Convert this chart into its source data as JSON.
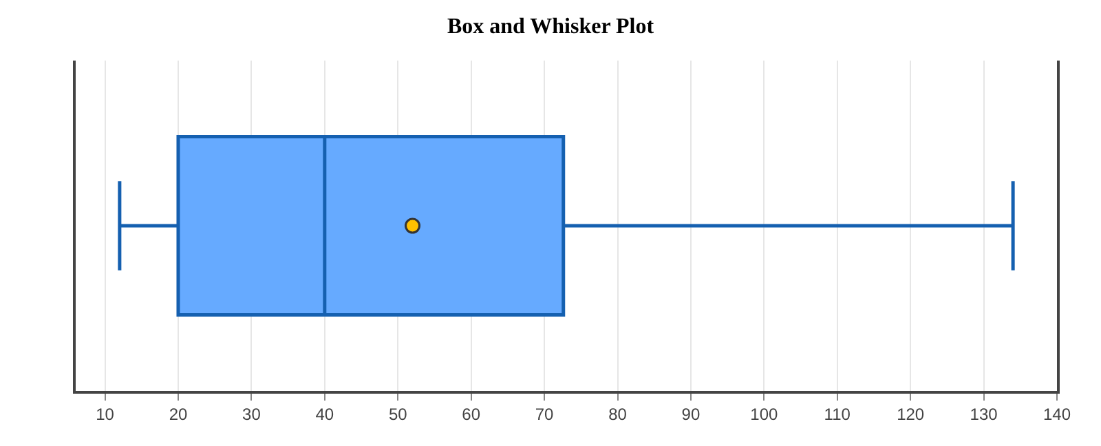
{
  "chart_data": {
    "type": "box",
    "title": "Box and Whisker Plot",
    "orientation": "horizontal",
    "categories": [
      null
    ],
    "boxes": [
      {
        "low": 12,
        "q1": 20,
        "median": 40,
        "q3": 72.6,
        "high": 134,
        "mean": 52
      }
    ],
    "color": "#66aaff",
    "xlim": [
      6,
      140
    ],
    "xticks": [
      10,
      20,
      30,
      40,
      50,
      60,
      70,
      80,
      90,
      100,
      110,
      120,
      130,
      140
    ],
    "grid": "x",
    "tick_labels": "x"
  }
}
